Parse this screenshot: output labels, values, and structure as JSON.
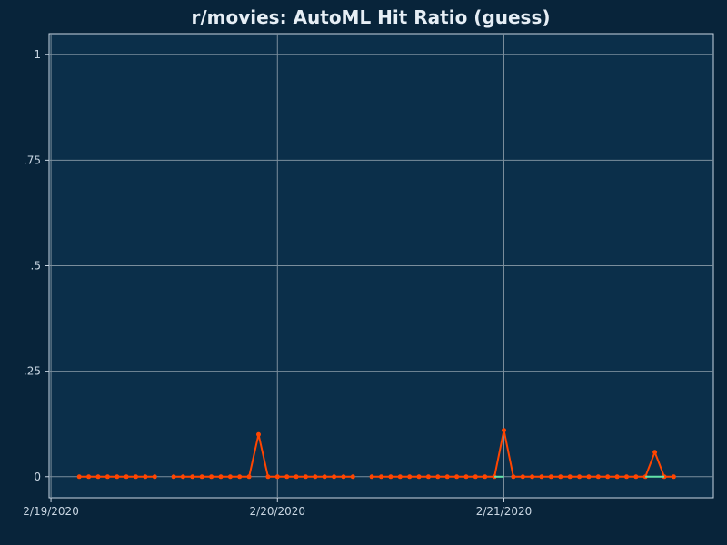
{
  "chart_data": {
    "type": "line",
    "title": "r/movies: AutoML Hit Ratio (guess)",
    "xlabel": "",
    "ylabel": "",
    "ylim": [
      -0.05,
      1.05
    ],
    "y_ticks": [
      {
        "value": 0,
        "label": "0"
      },
      {
        "value": 0.25,
        "label": ".25"
      },
      {
        "value": 0.5,
        "label": ".5"
      },
      {
        "value": 0.75,
        "label": ".75"
      },
      {
        "value": 1,
        "label": "1"
      }
    ],
    "x_ticks": [
      {
        "value": 0,
        "label": "2/19/2020"
      },
      {
        "value": 24,
        "label": "2/20/2020"
      },
      {
        "value": 48,
        "label": "2/21/2020"
      }
    ],
    "xlim": [
      -0.2,
      70.2
    ],
    "grid": true,
    "colors": {
      "background": "#08243a",
      "plot_area": "#0b2f4a",
      "grid": "#7b8e9c",
      "axis": "#c9d6e2",
      "series_main": "#ff4500",
      "series_secondary": "#62e3a8"
    },
    "series": [
      {
        "color": "#ff4500",
        "points": [
          [
            3,
            0
          ],
          [
            4,
            0
          ],
          [
            5,
            0
          ],
          [
            6,
            0
          ],
          [
            7,
            0
          ],
          [
            8,
            0
          ],
          [
            9,
            0
          ],
          [
            10,
            0
          ],
          [
            11,
            0
          ],
          null,
          [
            13,
            0
          ],
          [
            14,
            0
          ],
          [
            15,
            0
          ],
          [
            16,
            0
          ],
          [
            17,
            0
          ],
          [
            18,
            0
          ],
          [
            19,
            0
          ],
          [
            20,
            0
          ],
          [
            21,
            0
          ],
          [
            22,
            0.1
          ],
          [
            23,
            0
          ],
          [
            24,
            0
          ],
          [
            25,
            0
          ],
          [
            26,
            0
          ],
          [
            27,
            0
          ],
          [
            28,
            0
          ],
          [
            29,
            0
          ],
          [
            30,
            0
          ],
          [
            31,
            0
          ],
          [
            32,
            0
          ],
          null,
          [
            34,
            0
          ],
          [
            35,
            0
          ],
          [
            36,
            0
          ],
          [
            37,
            0
          ],
          [
            38,
            0
          ],
          [
            39,
            0
          ],
          [
            40,
            0
          ],
          [
            41,
            0
          ],
          [
            42,
            0
          ],
          [
            43,
            0
          ],
          [
            44,
            0
          ],
          [
            45,
            0
          ],
          [
            46,
            0
          ],
          [
            47,
            0
          ],
          [
            48,
            0.11
          ],
          [
            49,
            0
          ],
          [
            50,
            0
          ],
          [
            51,
            0
          ],
          [
            52,
            0
          ],
          [
            53,
            0
          ],
          [
            54,
            0
          ],
          [
            55,
            0
          ],
          [
            56,
            0
          ],
          [
            57,
            0
          ],
          [
            58,
            0
          ],
          [
            59,
            0
          ],
          [
            60,
            0
          ],
          [
            61,
            0
          ],
          [
            62,
            0
          ],
          [
            63,
            0
          ],
          [
            64,
            0.058
          ],
          [
            65,
            0
          ],
          [
            66,
            0
          ]
        ]
      },
      {
        "color": "#62e3a8",
        "points": [
          [
            47,
            0
          ],
          [
            48,
            0
          ],
          null,
          [
            63,
            0
          ],
          [
            65,
            0
          ]
        ]
      }
    ]
  }
}
